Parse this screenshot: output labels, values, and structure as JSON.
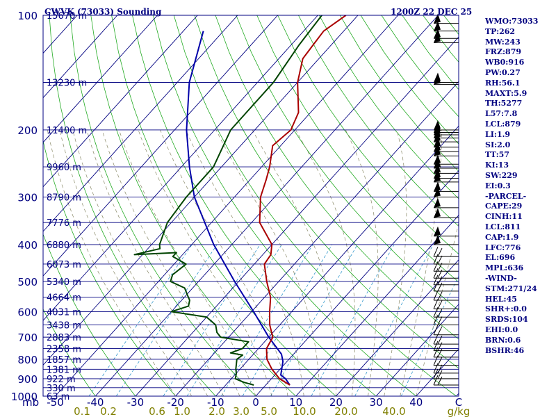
{
  "header": {
    "station": "CWVK (73033) Sounding",
    "time": "1200Z 22 DEC 25"
  },
  "colors": {
    "isobar": "#000080",
    "isotherm": "#000080",
    "dry_adiabat": "#22aa22",
    "moist_adiabat": "#888866",
    "mixing_ratio": "#3399cc",
    "temperature": "#aa0000",
    "dewpoint": "#004400",
    "parcel": "#0000aa",
    "axis_text": "#000080",
    "mixing_ratio_text": "#808000"
  },
  "chart_data": {
    "type": "line",
    "title": "CWVK (73033) Sounding",
    "subtitle": "1200Z 22 DEC 25",
    "pressure_levels_mb": [
      100,
      200,
      300,
      400,
      500,
      600,
      700,
      800,
      900,
      1000
    ],
    "pressure_axis_label": "mb",
    "temperature_ticks_c": [
      -50,
      -40,
      -30,
      -20,
      -10,
      0,
      10,
      20,
      30,
      40
    ],
    "temperature_tick_labels": [
      "-50",
      "-40",
      "-30",
      "-20",
      "-10",
      "0",
      "10",
      "20",
      "30",
      "40"
    ],
    "extra_corner_label": "C",
    "mixing_ratio_labels": [
      "0.1",
      "0.2",
      "0.6",
      "1.0",
      "2.0",
      "3.0",
      "5.0",
      "10.0",
      "20.0",
      "40.0"
    ],
    "mixing_ratio_unit": "g/kg",
    "height_labels": [
      {
        "p": 100,
        "label": "15670 m"
      },
      {
        "p": 150,
        "label": "13230 m"
      },
      {
        "p": 200,
        "label": "11400 m"
      },
      {
        "p": 250,
        "label": "9960 m"
      },
      {
        "p": 300,
        "label": "8790 m"
      },
      {
        "p": 350,
        "label": "7776 m"
      },
      {
        "p": 400,
        "label": "6880 m"
      },
      {
        "p": 450,
        "label": "6073 m"
      },
      {
        "p": 500,
        "label": "5340 m"
      },
      {
        "p": 550,
        "label": "4664 m"
      },
      {
        "p": 600,
        "label": "4031 m"
      },
      {
        "p": 650,
        "label": "3438 m"
      },
      {
        "p": 700,
        "label": "2883 m"
      },
      {
        "p": 750,
        "label": "2358 m"
      },
      {
        "p": 800,
        "label": "1857 m"
      },
      {
        "p": 850,
        "label": "1381 m"
      },
      {
        "p": 900,
        "label": "922 m"
      },
      {
        "p": 950,
        "label": "330 m"
      },
      {
        "p": 1000,
        "label": "63 m"
      }
    ],
    "temperature_profile": [
      [
        935,
        6.0
      ],
      [
        900,
        2.0
      ],
      [
        850,
        -2.0
      ],
      [
        800,
        -5.5
      ],
      [
        750,
        -8.0
      ],
      [
        700,
        -9.0
      ],
      [
        650,
        -12.5
      ],
      [
        600,
        -15.5
      ],
      [
        550,
        -18.5
      ],
      [
        500,
        -23.0
      ],
      [
        450,
        -27.5
      ],
      [
        425,
        -28.0
      ],
      [
        400,
        -30.0
      ],
      [
        350,
        -38.0
      ],
      [
        300,
        -43.5
      ],
      [
        270,
        -46.0
      ],
      [
        250,
        -48.0
      ],
      [
        220,
        -52.0
      ],
      [
        200,
        -51.0
      ],
      [
        180,
        -53.0
      ],
      [
        150,
        -60.0
      ],
      [
        130,
        -64.0
      ],
      [
        120,
        -64.5
      ],
      [
        110,
        -65.0
      ],
      [
        100,
        -63.0
      ]
    ],
    "dewpoint_profile": [
      [
        935,
        -3.0
      ],
      [
        920,
        -6.0
      ],
      [
        900,
        -9.0
      ],
      [
        870,
        -10.0
      ],
      [
        850,
        -11.0
      ],
      [
        800,
        -13.0
      ],
      [
        780,
        -12.5
      ],
      [
        770,
        -16.0
      ],
      [
        750,
        -14.0
      ],
      [
        720,
        -14.0
      ],
      [
        700,
        -22.0
      ],
      [
        680,
        -24.0
      ],
      [
        650,
        -26.0
      ],
      [
        620,
        -30.0
      ],
      [
        600,
        -40.0
      ],
      [
        580,
        -37.0
      ],
      [
        560,
        -38.0
      ],
      [
        540,
        -40.0
      ],
      [
        520,
        -42.0
      ],
      [
        500,
        -47.0
      ],
      [
        480,
        -48.0
      ],
      [
        450,
        -47.0
      ],
      [
        430,
        -52.0
      ],
      [
        420,
        -52.0
      ],
      [
        425,
        -62.0
      ],
      [
        410,
        -57.0
      ],
      [
        400,
        -58.0
      ],
      [
        350,
        -61.0
      ],
      [
        300,
        -62.0
      ],
      [
        250,
        -62.0
      ],
      [
        200,
        -66.0
      ],
      [
        150,
        -66.0
      ],
      [
        120,
        -68.0
      ],
      [
        100,
        -69.0
      ]
    ],
    "parcel_profile": [
      [
        935,
        6.0
      ],
      [
        900,
        3.5
      ],
      [
        880,
        1.5
      ],
      [
        811,
        -1.0
      ],
      [
        776,
        -3.0
      ],
      [
        700,
        -10.0
      ],
      [
        600,
        -19.5
      ],
      [
        500,
        -31.0
      ],
      [
        400,
        -44.5
      ],
      [
        300,
        -60.0
      ],
      [
        250,
        -68.0
      ],
      [
        200,
        -77.0
      ],
      [
        150,
        -87.0
      ],
      [
        110,
        -95.0
      ]
    ],
    "wind_barb_levels_mb": [
      105,
      110,
      115,
      118,
      150,
      152,
      200,
      203,
      206,
      210,
      215,
      222,
      228,
      234,
      246,
      252,
      260,
      268,
      274,
      290,
      300,
      320,
      340,
      380,
      400,
      430,
      450,
      470,
      490,
      510,
      530,
      560,
      590,
      620,
      650,
      690,
      730,
      760,
      790,
      830,
      870,
      900,
      935
    ]
  },
  "indices": [
    "WMO:73033",
    "TP:262",
    "MW:243",
    "FRZ:879",
    "WB0:916",
    "PW:0.27",
    "RH:56.1",
    "MAXT:5.9",
    "TH:5277",
    "L57:7.8",
    "LCL:879",
    "LI:1.9",
    "SI:2.0",
    "TT:57",
    "KI:13",
    "SW:229",
    "EI:0.3",
    "-PARCEL-",
    "CAPE:29",
    "CINH:11",
    "LCL:811",
    "CAP:1.9",
    "LFC:776",
    "EL:696",
    "MPL:636",
    "-WIND-",
    "STM:271/24",
    "HEL:45",
    "SHR+:0.0",
    "SRDS:104",
    "EHI:0.0",
    "BRN:0.6",
    "BSHR:46"
  ]
}
